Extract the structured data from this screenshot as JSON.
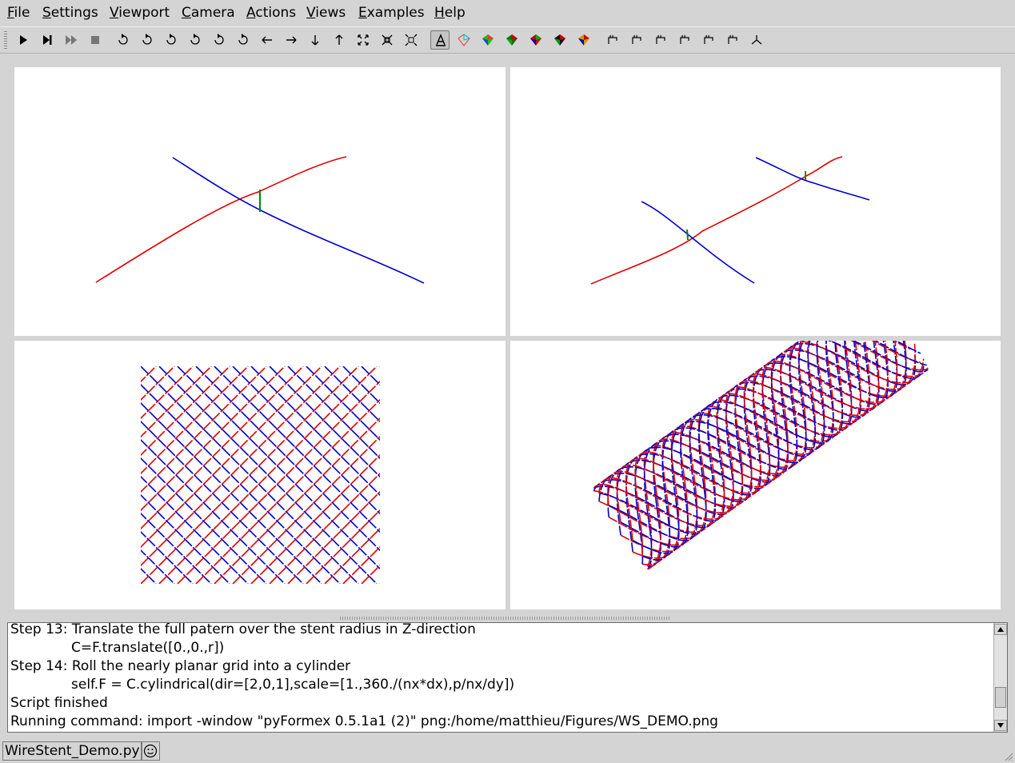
{
  "menu": [
    "File",
    "Settings",
    "Viewport",
    "Camera",
    "Actions",
    "Views",
    "Examples",
    "Help"
  ],
  "menu_accel": [
    "F",
    "S",
    "V",
    "C",
    "A",
    "V",
    "E",
    "H"
  ],
  "toolbar": {
    "buttons": [
      "play-icon",
      "step-icon",
      "fast-forward-icon",
      "stop-icon",
      "rotate-left-icon",
      "rotate-right-icon",
      "rotate-up-icon",
      "rotate-down-icon",
      "rotate-ccw-icon",
      "rotate-cw-icon",
      "pan-left-icon",
      "pan-right-icon",
      "pan-down-icon",
      "pan-up-icon",
      "zoom-in-icon",
      "zoom-out-icon",
      "zoom-all-icon",
      "transparency-icon",
      "wireframe-icon",
      "flat-icon",
      "smooth-icon",
      "smooth-lines-icon",
      "flat-lines-icon",
      "shaded-icon",
      "front-view-icon",
      "back-view-icon",
      "left-view-icon",
      "right-view-icon",
      "top-view-icon",
      "bottom-view-icon",
      "iso-view-icon"
    ],
    "pressed": "transparency-icon"
  },
  "colors": {
    "wire_red": "#e00000",
    "wire_blue": "#0000cc",
    "connector_green": "#008800",
    "viewport_bg": "#ffffff",
    "window_bg": "#d4d4d4"
  },
  "console": {
    "lines": [
      {
        "text": "Step 13: Translate the full patern over the stent radius in Z-direction",
        "indent": false
      },
      {
        "text": "C=F.translate([0.,0.,r])",
        "indent": true
      },
      {
        "text": "Step 14: Roll the nearly planar grid into a cylinder",
        "indent": false
      },
      {
        "text": "self.F = C.cylindrical(dir=[2,0,1],scale=[1.,360./(nx*dx),p/nx/dy])",
        "indent": true
      },
      {
        "text": "Script finished",
        "indent": false
      },
      {
        "text": "Running command: import -window \"pyFormex 0.5.1a1 (2)\" png:/home/matthieu/Figures/WS_DEMO.png",
        "indent": false
      }
    ]
  },
  "status": {
    "current_file": "WireStent_Demo.py"
  }
}
